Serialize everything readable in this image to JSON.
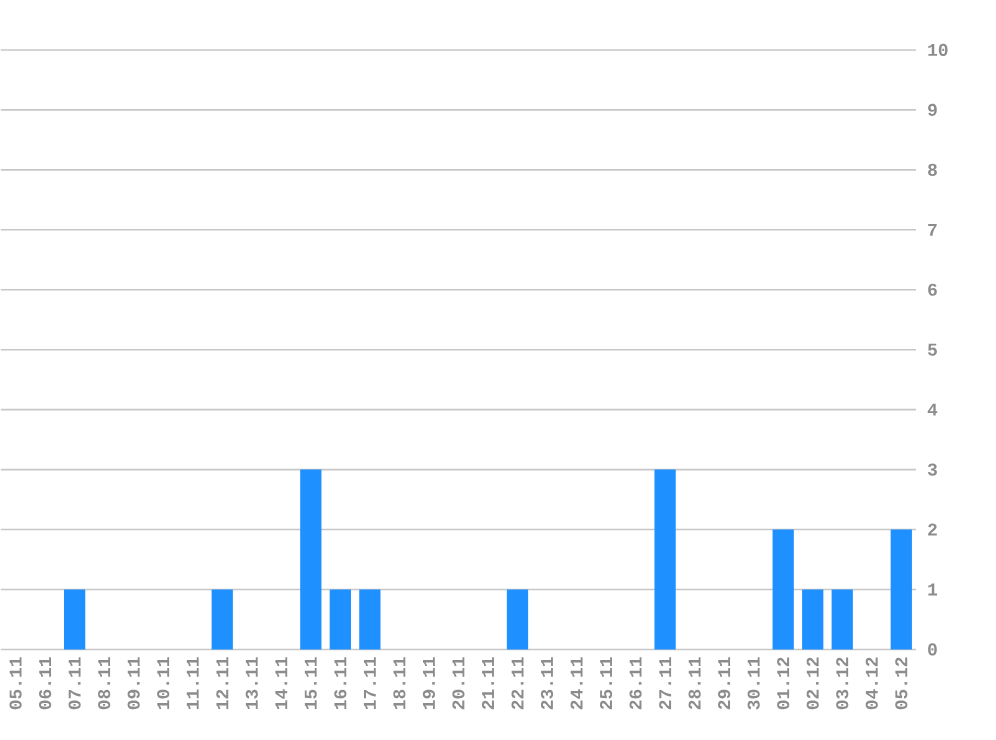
{
  "chart_data": {
    "type": "bar",
    "categories": [
      "05.11",
      "06.11",
      "07.11",
      "08.11",
      "09.11",
      "10.11",
      "11.11",
      "12.11",
      "13.11",
      "14.11",
      "15.11",
      "16.11",
      "17.11",
      "18.11",
      "19.11",
      "20.11",
      "21.11",
      "22.11",
      "23.11",
      "24.11",
      "25.11",
      "26.11",
      "27.11",
      "28.11",
      "29.11",
      "30.11",
      "01.12",
      "02.12",
      "03.12",
      "04.12",
      "05.12"
    ],
    "values": [
      0,
      0,
      1,
      0,
      0,
      0,
      0,
      1,
      0,
      0,
      3,
      1,
      1,
      0,
      0,
      0,
      0,
      1,
      0,
      0,
      0,
      0,
      3,
      0,
      0,
      0,
      2,
      1,
      1,
      0,
      2
    ],
    "color": "#1e90ff",
    "ylim": [
      0,
      10
    ],
    "yticks": [
      0,
      1,
      2,
      3,
      4,
      5,
      6,
      7,
      8,
      9,
      10
    ],
    "grid": "y"
  }
}
